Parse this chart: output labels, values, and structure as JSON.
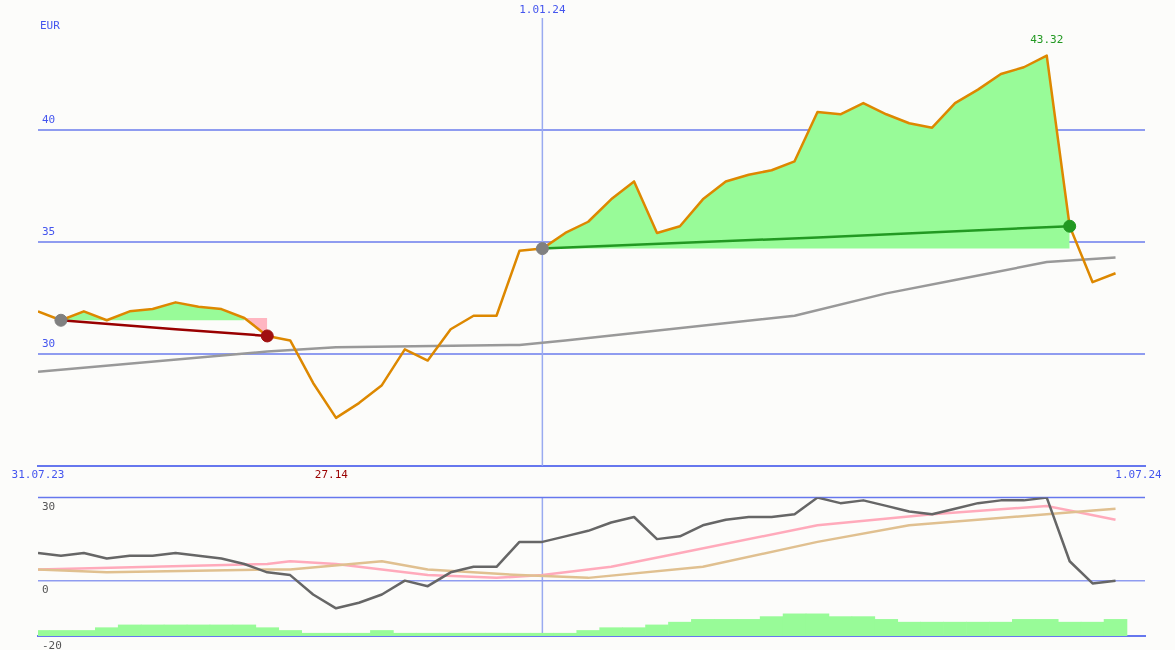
{
  "chart_data": [
    {
      "type": "line",
      "ylabel": "EUR",
      "xlim": [
        "2023-07-31",
        "2024-07-03"
      ],
      "xticks": [
        {
          "value": "2023-07-31",
          "label": "31.07.23"
        },
        {
          "value": "2024-07-01",
          "label": "1.07.24"
        }
      ],
      "ylim": [
        25,
        45
      ],
      "yticks": [
        30,
        35,
        40
      ],
      "grid": "y",
      "marker": "none",
      "ref_lines": [
        {
          "axis": "x",
          "value": "2024-01-01",
          "label": "1.01.24",
          "color": "#99aaf0"
        }
      ],
      "annotations": [
        {
          "text": "43.32",
          "x": "2024-06-03",
          "y": 43.32
        },
        "27.14"
      ],
      "x": [
        "2023-07-31",
        "2023-08-07",
        "2023-08-14",
        "2023-08-21",
        "2023-08-28",
        "2023-09-04",
        "2023-09-11",
        "2023-09-18",
        "2023-09-25",
        "2023-10-02",
        "2023-10-09",
        "2023-10-16",
        "2023-10-23",
        "2023-10-30",
        "2023-11-06",
        "2023-11-13",
        "2023-11-20",
        "2023-11-27",
        "2023-12-04",
        "2023-12-11",
        "2023-12-18",
        "2023-12-25",
        "2024-01-01",
        "2024-01-08",
        "2024-01-15",
        "2024-01-22",
        "2024-01-29",
        "2024-02-05",
        "2024-02-12",
        "2024-02-19",
        "2024-02-26",
        "2024-03-04",
        "2024-03-11",
        "2024-03-18",
        "2024-03-25",
        "2024-04-01",
        "2024-04-08",
        "2024-04-15",
        "2024-04-22",
        "2024-04-29",
        "2024-05-06",
        "2024-05-13",
        "2024-05-20",
        "2024-05-27",
        "2024-06-03",
        "2024-06-10",
        "2024-06-17",
        "2024-06-24"
      ],
      "series": [
        {
          "type": "area",
          "color": "#98fb98",
          "x": [
            "2023-08-07",
            "2023-08-14",
            "2023-08-21",
            "2023-08-28",
            "2023-09-04",
            "2023-09-11",
            "2023-09-18",
            "2023-09-25",
            "2023-10-02"
          ],
          "values": [
            31.5,
            31.9,
            31.5,
            31.9,
            32.0,
            32.3,
            32.1,
            32.0,
            31.6
          ]
        },
        {
          "type": "area",
          "color": "#ffb6c1",
          "x": [
            "2023-10-02",
            "2023-10-09"
          ],
          "values": [
            31.6,
            30.8
          ]
        },
        {
          "type": "area",
          "color": "#98fb98",
          "x": [
            "2024-01-01",
            "2024-01-08",
            "2024-01-15",
            "2024-01-22",
            "2024-01-29",
            "2024-02-05",
            "2024-02-12",
            "2024-02-19",
            "2024-02-26",
            "2024-03-04",
            "2024-03-11",
            "2024-03-18",
            "2024-03-25",
            "2024-04-01",
            "2024-04-08",
            "2024-04-15",
            "2024-04-22",
            "2024-04-29",
            "2024-05-06",
            "2024-05-13",
            "2024-05-20",
            "2024-05-27",
            "2024-06-03",
            "2024-06-10"
          ],
          "values": [
            34.7,
            35.4,
            35.9,
            36.9,
            37.7,
            35.4,
            35.7,
            36.9,
            37.7,
            38.0,
            38.2,
            38.6,
            40.8,
            40.7,
            41.2,
            40.7,
            40.3,
            40.1,
            41.2,
            41.8,
            42.5,
            42.8,
            43.32,
            35.7
          ]
        },
        {
          "type": "line",
          "color": "#999999",
          "x": [
            "2023-07-31",
            "2023-10-09",
            "2023-10-30",
            "2023-12-25",
            "2024-01-08",
            "2024-03-18",
            "2024-04-15",
            "2024-05-06",
            "2024-06-03",
            "2024-06-24"
          ],
          "values": [
            29.2,
            30.1,
            30.3,
            30.4,
            30.6,
            31.7,
            32.7,
            33.3,
            34.1,
            34.3
          ]
        },
        {
          "type": "line",
          "color": "#990000",
          "x": [
            "2023-08-07",
            "2023-09-11",
            "2023-10-09"
          ],
          "values": [
            31.5,
            31.1,
            30.8
          ]
        },
        {
          "type": "line",
          "color": "#229922",
          "x": [
            "2024-01-01",
            "2024-03-25",
            "2024-06-10"
          ],
          "values": [
            34.7,
            35.2,
            35.7
          ]
        },
        {
          "type": "line",
          "color": "#dd8800",
          "values": [
            31.9,
            31.5,
            31.9,
            31.5,
            31.9,
            32.0,
            32.3,
            32.1,
            32.0,
            31.6,
            30.8,
            30.6,
            28.7,
            27.14,
            27.8,
            28.6,
            30.2,
            29.7,
            31.1,
            31.7,
            31.7,
            34.6,
            34.7,
            35.4,
            35.9,
            36.9,
            37.7,
            35.4,
            35.7,
            36.9,
            37.7,
            38.0,
            38.2,
            38.6,
            40.8,
            40.7,
            41.2,
            40.7,
            40.3,
            40.1,
            41.2,
            41.8,
            42.5,
            42.8,
            43.32,
            35.7,
            33.2,
            33.6
          ]
        },
        {
          "type": "scatter",
          "marker": "circle",
          "x": [
            "2023-08-07",
            "2023-10-09",
            "2024-01-01",
            "2024-06-10"
          ],
          "values": [
            31.5,
            30.8,
            34.7,
            35.7
          ],
          "colors": [
            "#808080",
            "#a01010",
            "#808080",
            "#229922"
          ]
        }
      ]
    },
    {
      "type": "line",
      "xlim": [
        "2023-07-31",
        "2024-07-03"
      ],
      "ylim": [
        -20,
        30
      ],
      "yticks": [
        -20,
        0,
        30
      ],
      "tick_labels": "y",
      "marker": "none",
      "ref_lines": [
        {
          "axis": "x",
          "value": "2024-01-01",
          "color": "#99aaf0"
        },
        {
          "axis": "y",
          "value": 0,
          "color": "#8f9cf0"
        },
        {
          "axis": "y",
          "value": 30,
          "color": "#6677ee"
        }
      ],
      "x": [
        "2023-07-31",
        "2023-08-07",
        "2023-08-14",
        "2023-08-21",
        "2023-08-28",
        "2023-09-04",
        "2023-09-11",
        "2023-09-18",
        "2023-09-25",
        "2023-10-02",
        "2023-10-09",
        "2023-10-16",
        "2023-10-23",
        "2023-10-30",
        "2023-11-06",
        "2023-11-13",
        "2023-11-20",
        "2023-11-27",
        "2023-12-04",
        "2023-12-11",
        "2023-12-18",
        "2023-12-25",
        "2024-01-01",
        "2024-01-08",
        "2024-01-15",
        "2024-01-22",
        "2024-01-29",
        "2024-02-05",
        "2024-02-12",
        "2024-02-19",
        "2024-02-26",
        "2024-03-04",
        "2024-03-11",
        "2024-03-18",
        "2024-03-25",
        "2024-04-01",
        "2024-04-08",
        "2024-04-15",
        "2024-04-22",
        "2024-04-29",
        "2024-05-06",
        "2024-05-13",
        "2024-05-20",
        "2024-05-27",
        "2024-06-03",
        "2024-06-10",
        "2024-06-17",
        "2024-06-24"
      ],
      "series": [
        {
          "type": "bar",
          "color": "#98fb98",
          "base": [
            -20,
            -20,
            -20,
            -20,
            -20,
            -20,
            -20,
            -20,
            -20,
            -20,
            -20,
            -20,
            -20,
            -20,
            -20,
            -20,
            -20,
            -20,
            -20,
            -20,
            -20,
            -20,
            -20,
            -20,
            -20,
            -20,
            -20,
            -20,
            -20,
            -20,
            -20,
            -20,
            -20,
            -20,
            -20,
            -20,
            -20,
            -20,
            -20,
            -20,
            -20,
            -20,
            -20,
            -20,
            -20,
            -20,
            -20,
            -20
          ],
          "values": [
            2,
            2,
            2,
            3,
            4,
            4,
            4,
            4,
            4,
            4,
            3,
            2,
            1,
            1,
            1,
            2,
            1,
            1,
            1,
            1,
            1,
            1,
            1,
            1,
            2,
            3,
            3,
            4,
            5,
            6,
            6,
            6,
            7,
            8,
            8,
            7,
            7,
            6,
            5,
            5,
            5,
            5,
            5,
            6,
            6,
            5,
            5,
            6
          ]
        },
        {
          "type": "line",
          "color": "#ffaabb",
          "x": [
            "2023-07-31",
            "2023-10-09",
            "2023-10-16",
            "2023-10-30",
            "2023-11-27",
            "2023-12-18",
            "2024-01-01",
            "2024-01-08",
            "2024-01-22",
            "2024-02-12",
            "2024-03-25",
            "2024-04-29",
            "2024-06-03",
            "2024-06-24"
          ],
          "values": [
            4,
            6,
            7,
            6,
            2,
            1,
            2,
            3,
            5,
            10,
            20,
            24,
            27,
            22
          ]
        },
        {
          "type": "line",
          "color": "#e0c090",
          "x": [
            "2023-07-31",
            "2023-08-21",
            "2023-10-09",
            "2023-10-16",
            "2023-11-13",
            "2023-11-27",
            "2023-12-25",
            "2024-01-15",
            "2024-02-19",
            "2024-03-25",
            "2024-04-22",
            "2024-06-03",
            "2024-06-24"
          ],
          "values": [
            4,
            3,
            4,
            4,
            7,
            4,
            2,
            1,
            5,
            14,
            20,
            24,
            26
          ]
        },
        {
          "type": "line",
          "color": "#666666",
          "values": [
            10,
            9,
            10,
            8,
            9,
            9,
            10,
            9,
            8,
            6,
            3,
            2,
            -5,
            -10,
            -8,
            -5,
            0,
            -2,
            3,
            5,
            5,
            14,
            14,
            16,
            18,
            21,
            23,
            15,
            16,
            20,
            22,
            23,
            23,
            24,
            30,
            28,
            29,
            27,
            25,
            24,
            26,
            28,
            29,
            29,
            30,
            7,
            -1,
            0
          ]
        }
      ]
    }
  ]
}
